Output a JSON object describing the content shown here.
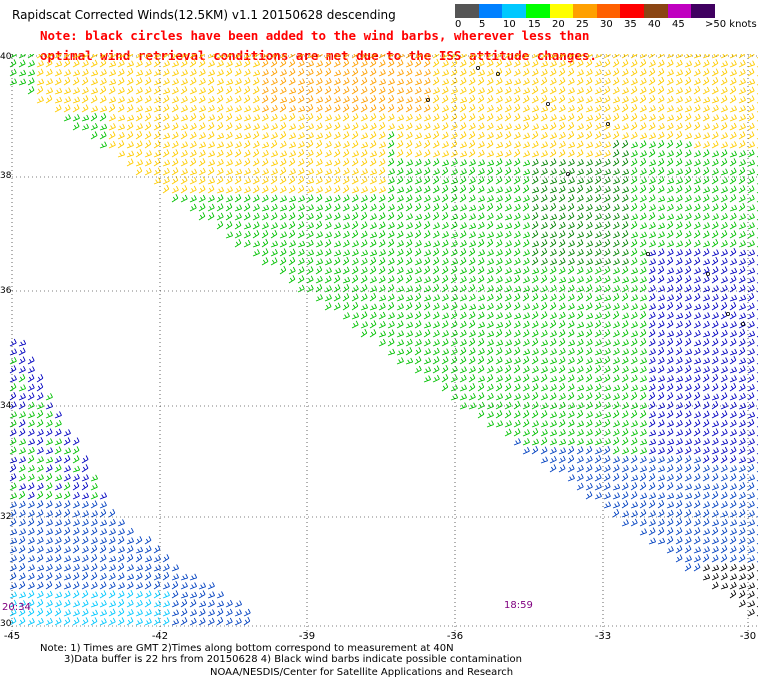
{
  "title": "Rapidscat Corrected Winds(12.5KM) v1.1 20150628 descending",
  "note_line1": "Note: black circles have been added to the wind barbs, wherever less than",
  "note_line2": "optimal wind retrieval conditions are met due to the ISS attitude changes.",
  "legend": {
    "colors": [
      "#555555",
      "#0080ff",
      "#00c8ff",
      "#00ff00",
      "#ffff00",
      "#ffa000",
      "#ff6000",
      "#ff0000",
      "#8b4513",
      "#c000c0",
      "#400060"
    ],
    "labels": [
      "0",
      "5",
      "10",
      "15",
      "20",
      "25",
      "30",
      "35",
      "40",
      "45",
      ">50 knots"
    ]
  },
  "axes": {
    "x_ticks": [
      "-45",
      "-42",
      "-39",
      "-36",
      "-33",
      "-30"
    ],
    "y_ticks": [
      "40",
      "38",
      "36",
      "34",
      "32",
      "30"
    ]
  },
  "times": [
    "20:34",
    "18:59"
  ],
  "footnote1": "Note: 1) Times are GMT 2)Times along bottom correspond to measurement at 40N",
  "footnote2": "3)Data buffer is 22 hrs from 20150628 4) Black wind barbs indicate possible contamination",
  "credit": "NOAA/NESDIS/Center for Satellite Applications and Research"
}
